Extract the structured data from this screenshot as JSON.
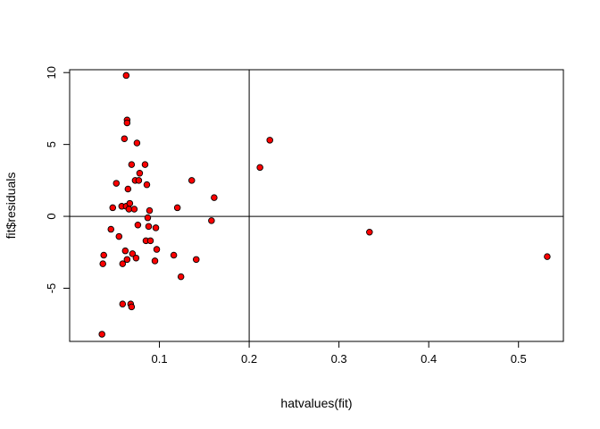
{
  "chart_data": {
    "type": "scatter",
    "title": "",
    "xlabel": "hatvalues(fit)",
    "ylabel": "fit$residuals",
    "xlim": [
      0.0,
      0.55
    ],
    "ylim": [
      -8.7,
      10.2
    ],
    "x_ticks": [
      0.1,
      0.2,
      0.3,
      0.4,
      0.5
    ],
    "x_tick_labels": [
      "0.1",
      "0.2",
      "0.3",
      "0.4",
      "0.5"
    ],
    "y_ticks": [
      -5,
      0,
      5,
      10
    ],
    "y_tick_labels": [
      "-5",
      "0",
      "5",
      "10"
    ],
    "reference_lines": {
      "vertical_x": 0.2,
      "horizontal_y": 0
    },
    "point_fill": "#ff0000",
    "point_stroke": "#000000",
    "grid": false,
    "legend": "none",
    "points": [
      {
        "x": 0.036,
        "y": -8.2
      },
      {
        "x": 0.037,
        "y": -3.3
      },
      {
        "x": 0.038,
        "y": -2.7
      },
      {
        "x": 0.046,
        "y": -0.9
      },
      {
        "x": 0.048,
        "y": 0.6
      },
      {
        "x": 0.052,
        "y": 2.3
      },
      {
        "x": 0.055,
        "y": -1.4
      },
      {
        "x": 0.058,
        "y": 0.7
      },
      {
        "x": 0.059,
        "y": -6.1
      },
      {
        "x": 0.059,
        "y": -3.3
      },
      {
        "x": 0.061,
        "y": 5.4
      },
      {
        "x": 0.062,
        "y": -2.4
      },
      {
        "x": 0.063,
        "y": 0.7
      },
      {
        "x": 0.063,
        "y": 9.8
      },
      {
        "x": 0.064,
        "y": 6.7
      },
      {
        "x": 0.064,
        "y": 6.5
      },
      {
        "x": 0.064,
        "y": -3.0
      },
      {
        "x": 0.065,
        "y": 1.9
      },
      {
        "x": 0.066,
        "y": 0.5
      },
      {
        "x": 0.067,
        "y": 0.9
      },
      {
        "x": 0.068,
        "y": -6.1
      },
      {
        "x": 0.069,
        "y": 3.6
      },
      {
        "x": 0.069,
        "y": -6.3
      },
      {
        "x": 0.07,
        "y": -2.6
      },
      {
        "x": 0.072,
        "y": 0.5
      },
      {
        "x": 0.073,
        "y": 2.5
      },
      {
        "x": 0.074,
        "y": -2.9
      },
      {
        "x": 0.075,
        "y": 5.1
      },
      {
        "x": 0.076,
        "y": -0.6
      },
      {
        "x": 0.077,
        "y": 2.5
      },
      {
        "x": 0.078,
        "y": 3.0
      },
      {
        "x": 0.084,
        "y": 3.6
      },
      {
        "x": 0.085,
        "y": -1.7
      },
      {
        "x": 0.086,
        "y": 2.2
      },
      {
        "x": 0.087,
        "y": -0.1
      },
      {
        "x": 0.088,
        "y": -0.7
      },
      {
        "x": 0.089,
        "y": 0.4
      },
      {
        "x": 0.09,
        "y": -1.7
      },
      {
        "x": 0.095,
        "y": -3.1
      },
      {
        "x": 0.096,
        "y": -0.8
      },
      {
        "x": 0.097,
        "y": -2.3
      },
      {
        "x": 0.116,
        "y": -2.7
      },
      {
        "x": 0.12,
        "y": 0.6
      },
      {
        "x": 0.124,
        "y": -4.2
      },
      {
        "x": 0.136,
        "y": 2.5
      },
      {
        "x": 0.141,
        "y": -3.0
      },
      {
        "x": 0.158,
        "y": -0.3
      },
      {
        "x": 0.161,
        "y": 1.3
      },
      {
        "x": 0.212,
        "y": 3.4
      },
      {
        "x": 0.223,
        "y": 5.3
      },
      {
        "x": 0.334,
        "y": -1.1
      },
      {
        "x": 0.532,
        "y": -2.8
      }
    ]
  }
}
